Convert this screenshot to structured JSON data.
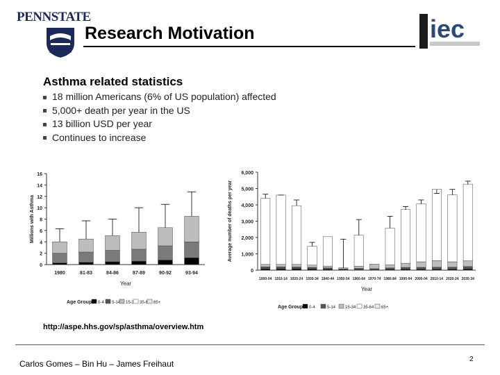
{
  "header": {
    "logo_left_text": "PENNSTATE",
    "logo_left_year_left": "1",
    "logo_left_year_right": "5",
    "logo_right_text": "iec",
    "title": "Research Motivation"
  },
  "main": {
    "subtitle": "Asthma related statistics",
    "bullets": [
      "18 million Americans (6% of US population) affected",
      "5,000+ death per year in the US",
      "13 billion USD per year",
      "Continues to increase"
    ],
    "source_url": "http://aspe.hhs.gov/sp/asthma/overview.htm"
  },
  "footer": {
    "authors": "Carlos Gomes – Bin Hu – James Freihaut",
    "page_number": "2"
  },
  "chart_data": [
    {
      "type": "bar",
      "stacked": true,
      "ylabel": "Millions with Asthma",
      "xlabel": "Year",
      "ylim": [
        0,
        16
      ],
      "yticks": [
        0,
        2,
        4,
        6,
        8,
        10,
        12,
        14,
        16
      ],
      "categories": [
        "1980",
        "81-83",
        "84-86",
        "87-89",
        "90-92",
        "93-94"
      ],
      "series": [
        {
          "values": [
            0.3,
            0.4,
            0.5,
            0.6,
            0.8,
            1.2
          ],
          "color": "#000000"
        },
        {
          "values": [
            1.7,
            1.8,
            2.0,
            2.1,
            2.5,
            2.8
          ],
          "color": "#7a7a7a"
        },
        {
          "values": [
            2.0,
            2.3,
            2.6,
            3.0,
            3.2,
            4.5
          ],
          "color": "#bdbdbd"
        }
      ],
      "error_tops": [
        6.3,
        7.7,
        8.0,
        10.0,
        10.6,
        12.8
      ],
      "legend_title": "Age Group:",
      "legend": [
        "0-4",
        "5-14",
        "15-34",
        "35-64",
        "65+"
      ]
    },
    {
      "type": "bar",
      "stacked": true,
      "ylabel": "Average number of deaths per year",
      "xlabel": "Year",
      "ylim": [
        0,
        6000
      ],
      "yticks": [
        "0",
        "1,000",
        "2,000",
        "3,000",
        "4,000",
        "5,000",
        "6,000"
      ],
      "categories": [
        "1900-04",
        "1910-14",
        "1920-24",
        "1930-34",
        "1940-44",
        "1950-54",
        "1960-64",
        "1970-74",
        "1980-84",
        "1990-94",
        "2000-04",
        "2010-14",
        "2020-24",
        "2030-34"
      ],
      "series": [
        {
          "values": [
            80,
            80,
            80,
            70,
            60,
            30,
            40,
            30,
            50,
            60,
            50,
            60,
            60,
            70
          ],
          "color": "#000000"
        },
        {
          "values": [
            120,
            120,
            110,
            100,
            80,
            50,
            70,
            60,
            90,
            110,
            120,
            120,
            120,
            150
          ],
          "color": "#555555"
        },
        {
          "values": [
            150,
            150,
            160,
            140,
            110,
            60,
            130,
            280,
            180,
            250,
            340,
            400,
            330,
            350
          ],
          "color": "#bdbdbd"
        },
        {
          "values": [
            4050,
            4250,
            3600,
            1150,
            1800,
            0,
            1900,
            0,
            2250,
            3300,
            3550,
            4370,
            4100,
            4700
          ],
          "color": "#ffffff"
        }
      ],
      "error_tops": [
        4650,
        4600,
        4300,
        1700,
        0,
        1900,
        3100,
        0,
        3300,
        3900,
        4300,
        4700,
        4950,
        5450
      ],
      "legend_title": "Age Group:",
      "legend": [
        "0-4",
        "5-14",
        "15-34",
        "35-64",
        "65+"
      ]
    }
  ]
}
